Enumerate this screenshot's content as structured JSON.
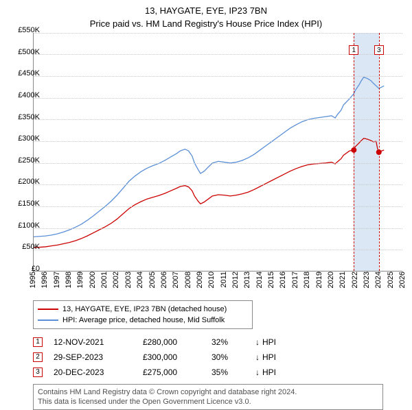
{
  "titles": {
    "line1": "13, HAYGATE, EYE, IP23 7BN",
    "line2": "Price paid vs. HM Land Registry's House Price Index (HPI)"
  },
  "chart": {
    "type": "line",
    "background_color": "#ffffff",
    "grid_color": "#c8c8c8",
    "x_years": [
      1995,
      1996,
      1997,
      1998,
      1999,
      2000,
      2001,
      2002,
      2003,
      2004,
      2005,
      2006,
      2007,
      2008,
      2009,
      2010,
      2011,
      2012,
      2013,
      2014,
      2015,
      2016,
      2017,
      2018,
      2019,
      2020,
      2021,
      2022,
      2023,
      2024,
      2025,
      2026
    ],
    "x_min": 1995,
    "x_max": 2026,
    "y_min": 0,
    "y_max": 550000,
    "y_step": 50000,
    "y_labels": [
      "£0",
      "£50K",
      "£100K",
      "£150K",
      "£200K",
      "£250K",
      "£300K",
      "£350K",
      "£400K",
      "£450K",
      "£500K",
      "£550K"
    ],
    "label_fontsize": 11,
    "highlight": {
      "start": 2021.87,
      "end": 2023.97,
      "fill": "#dbe7f5"
    },
    "series": [
      {
        "name": "property",
        "color": "#cc0000",
        "width": 1.3,
        "legend": "13, HAYGATE, EYE, IP23 7BN (detached house)",
        "points": [
          [
            1995.0,
            55000
          ],
          [
            1995.5,
            56000
          ],
          [
            1996.0,
            57000
          ],
          [
            1996.5,
            59000
          ],
          [
            1997.0,
            61000
          ],
          [
            1997.5,
            64000
          ],
          [
            1998.0,
            67000
          ],
          [
            1998.5,
            71000
          ],
          [
            1999.0,
            76000
          ],
          [
            1999.5,
            82000
          ],
          [
            2000.0,
            89000
          ],
          [
            2000.5,
            96000
          ],
          [
            2001.0,
            103000
          ],
          [
            2001.5,
            111000
          ],
          [
            2002.0,
            121000
          ],
          [
            2002.5,
            133000
          ],
          [
            2003.0,
            145000
          ],
          [
            2003.5,
            154000
          ],
          [
            2004.0,
            161000
          ],
          [
            2004.5,
            167000
          ],
          [
            2005.0,
            171000
          ],
          [
            2005.5,
            175000
          ],
          [
            2006.0,
            180000
          ],
          [
            2006.5,
            186000
          ],
          [
            2007.0,
            192000
          ],
          [
            2007.3,
            196000
          ],
          [
            2007.7,
            198000
          ],
          [
            2008.0,
            195000
          ],
          [
            2008.3,
            186000
          ],
          [
            2008.5,
            174000
          ],
          [
            2008.8,
            162000
          ],
          [
            2009.0,
            156000
          ],
          [
            2009.3,
            160000
          ],
          [
            2009.7,
            168000
          ],
          [
            2010.0,
            174000
          ],
          [
            2010.5,
            177000
          ],
          [
            2011.0,
            176000
          ],
          [
            2011.5,
            174000
          ],
          [
            2012.0,
            176000
          ],
          [
            2012.5,
            179000
          ],
          [
            2013.0,
            183000
          ],
          [
            2013.5,
            189000
          ],
          [
            2014.0,
            196000
          ],
          [
            2014.5,
            203000
          ],
          [
            2015.0,
            210000
          ],
          [
            2015.5,
            217000
          ],
          [
            2016.0,
            224000
          ],
          [
            2016.5,
            231000
          ],
          [
            2017.0,
            237000
          ],
          [
            2017.5,
            242000
          ],
          [
            2018.0,
            246000
          ],
          [
            2018.5,
            248000
          ],
          [
            2019.0,
            249000
          ],
          [
            2019.5,
            250000
          ],
          [
            2020.0,
            252000
          ],
          [
            2020.3,
            248000
          ],
          [
            2020.5,
            253000
          ],
          [
            2020.8,
            260000
          ],
          [
            2021.0,
            268000
          ],
          [
            2021.5,
            278000
          ],
          [
            2021.87,
            280000
          ],
          [
            2022.0,
            288000
          ],
          [
            2022.3,
            296000
          ],
          [
            2022.5,
            302000
          ],
          [
            2022.7,
            307000
          ],
          [
            2023.0,
            305000
          ],
          [
            2023.3,
            302000
          ],
          [
            2023.5,
            299000
          ],
          [
            2023.74,
            300000
          ],
          [
            2023.85,
            284000
          ],
          [
            2023.97,
            275000
          ],
          [
            2024.2,
            278000
          ],
          [
            2024.4,
            280000
          ]
        ]
      },
      {
        "name": "hpi",
        "color": "#5a8fd6",
        "width": 1.3,
        "legend": "HPI: Average price, detached house, Mid Suffolk",
        "points": [
          [
            1995.0,
            80000
          ],
          [
            1995.5,
            81000
          ],
          [
            1996.0,
            82000
          ],
          [
            1996.5,
            84000
          ],
          [
            1997.0,
            87000
          ],
          [
            1997.5,
            91000
          ],
          [
            1998.0,
            96000
          ],
          [
            1998.5,
            102000
          ],
          [
            1999.0,
            109000
          ],
          [
            1999.5,
            118000
          ],
          [
            2000.0,
            128000
          ],
          [
            2000.5,
            139000
          ],
          [
            2001.0,
            150000
          ],
          [
            2001.5,
            162000
          ],
          [
            2002.0,
            176000
          ],
          [
            2002.5,
            192000
          ],
          [
            2003.0,
            208000
          ],
          [
            2003.5,
            220000
          ],
          [
            2004.0,
            230000
          ],
          [
            2004.5,
            238000
          ],
          [
            2005.0,
            244000
          ],
          [
            2005.5,
            249000
          ],
          [
            2006.0,
            256000
          ],
          [
            2006.5,
            264000
          ],
          [
            2007.0,
            272000
          ],
          [
            2007.3,
            278000
          ],
          [
            2007.7,
            282000
          ],
          [
            2008.0,
            278000
          ],
          [
            2008.3,
            266000
          ],
          [
            2008.5,
            250000
          ],
          [
            2008.8,
            235000
          ],
          [
            2009.0,
            226000
          ],
          [
            2009.3,
            231000
          ],
          [
            2009.7,
            242000
          ],
          [
            2010.0,
            250000
          ],
          [
            2010.5,
            254000
          ],
          [
            2011.0,
            252000
          ],
          [
            2011.5,
            250000
          ],
          [
            2012.0,
            252000
          ],
          [
            2012.5,
            256000
          ],
          [
            2013.0,
            262000
          ],
          [
            2013.5,
            270000
          ],
          [
            2014.0,
            280000
          ],
          [
            2014.5,
            290000
          ],
          [
            2015.0,
            300000
          ],
          [
            2015.5,
            310000
          ],
          [
            2016.0,
            320000
          ],
          [
            2016.5,
            330000
          ],
          [
            2017.0,
            338000
          ],
          [
            2017.5,
            345000
          ],
          [
            2018.0,
            350000
          ],
          [
            2018.5,
            353000
          ],
          [
            2019.0,
            355000
          ],
          [
            2019.5,
            357000
          ],
          [
            2020.0,
            359000
          ],
          [
            2020.3,
            354000
          ],
          [
            2020.5,
            362000
          ],
          [
            2020.8,
            372000
          ],
          [
            2021.0,
            384000
          ],
          [
            2021.5,
            398000
          ],
          [
            2021.87,
            410000
          ],
          [
            2022.0,
            418000
          ],
          [
            2022.3,
            430000
          ],
          [
            2022.5,
            440000
          ],
          [
            2022.7,
            448000
          ],
          [
            2023.0,
            445000
          ],
          [
            2023.3,
            440000
          ],
          [
            2023.5,
            434000
          ],
          [
            2023.74,
            428000
          ],
          [
            2023.97,
            422000
          ],
          [
            2024.2,
            425000
          ],
          [
            2024.4,
            428000
          ]
        ]
      }
    ],
    "markers": [
      {
        "id": "1",
        "x": 2021.87,
        "y": 280000,
        "box_y": 510000
      },
      {
        "id": "3",
        "x": 2023.97,
        "y": 275000,
        "box_y": 510000
      }
    ]
  },
  "transactions": [
    {
      "id": "1",
      "date": "12-NOV-2021",
      "price": "£280,000",
      "pct": "32%",
      "arrow": "↓",
      "suffix": "HPI"
    },
    {
      "id": "2",
      "date": "29-SEP-2023",
      "price": "£300,000",
      "pct": "30%",
      "arrow": "↓",
      "suffix": "HPI"
    },
    {
      "id": "3",
      "date": "20-DEC-2023",
      "price": "£275,000",
      "pct": "35%",
      "arrow": "↓",
      "suffix": "HPI"
    }
  ],
  "footer": {
    "line1": "Contains HM Land Registry data © Crown copyright and database right 2024.",
    "line2": "This data is licensed under the Open Government Licence v3.0."
  }
}
